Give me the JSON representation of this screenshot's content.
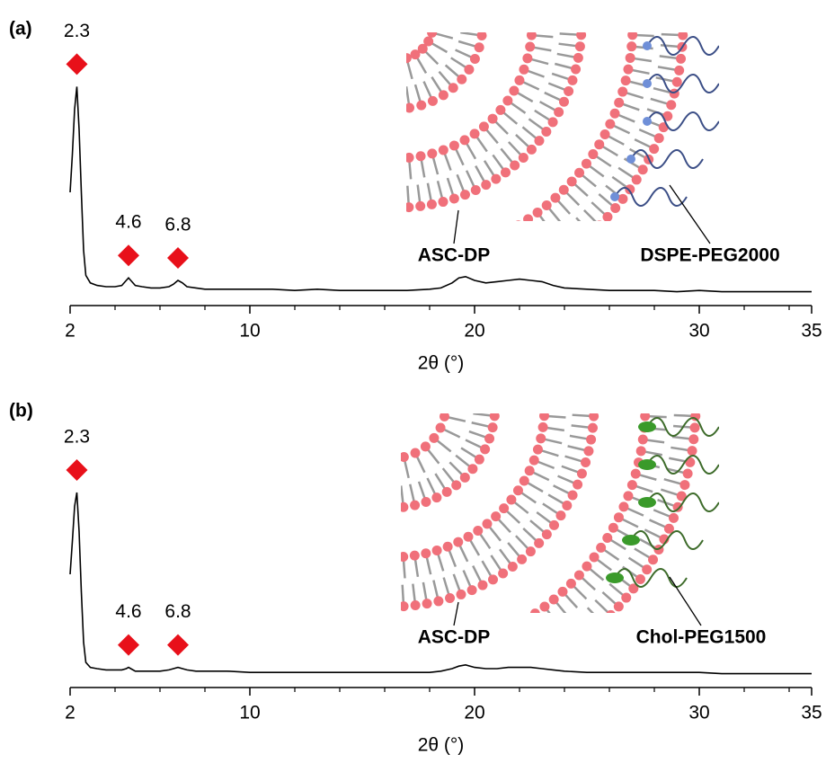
{
  "chart_data": [
    {
      "type": "line",
      "panel_label": "(a)",
      "x_label": "2θ (°)",
      "xlim": [
        2,
        35
      ],
      "xticks": [
        2,
        10,
        20,
        30,
        35
      ],
      "xminorticks": [
        4,
        6,
        8,
        12,
        14,
        16,
        18,
        22,
        24,
        26,
        28,
        32,
        34
      ],
      "ylim": [
        0,
        100
      ],
      "color": "#000000",
      "peak_labels": [
        2.3,
        4.6,
        6.8
      ],
      "peak_color": "#e8101a",
      "x": [
        2,
        2.1,
        2.2,
        2.3,
        2.4,
        2.5,
        2.6,
        2.7,
        2.9,
        3.2,
        3.6,
        4,
        4.3,
        4.5,
        4.6,
        4.7,
        4.9,
        5.2,
        5.6,
        6,
        6.4,
        6.6,
        6.8,
        7,
        7.2,
        7.6,
        8,
        9,
        10,
        11,
        12,
        13,
        14,
        15,
        16,
        17,
        18,
        18.5,
        19,
        19.3,
        19.6,
        20,
        20.5,
        21,
        21.5,
        22,
        22.5,
        23,
        23.5,
        24,
        25,
        26,
        27,
        28,
        29,
        30,
        31,
        32,
        33,
        34,
        35
      ],
      "values": [
        45,
        60,
        78,
        87,
        70,
        45,
        22,
        12,
        9,
        8,
        7.5,
        7.5,
        8,
        10,
        11,
        10,
        8,
        7.5,
        7,
        7,
        7.5,
        8.5,
        10,
        9,
        7.5,
        7,
        6.5,
        6.5,
        6.5,
        6.5,
        6,
        6.5,
        6,
        6,
        6,
        6,
        6.5,
        7,
        9,
        11,
        11.5,
        10,
        9,
        9.5,
        10,
        10.5,
        10,
        9.5,
        8,
        7,
        6.5,
        6,
        6,
        6,
        5.5,
        6,
        5.5,
        5.5,
        5.5,
        5.5,
        5.5
      ],
      "inset_labels": [
        {
          "text": "ASC-DP",
          "color": "#e8262e"
        },
        {
          "text": "DSPE-PEG2000",
          "color": "#1f1fd0"
        }
      ],
      "polymer_color": "#3b4e86",
      "anchor_color": "#6f8fd8"
    },
    {
      "type": "line",
      "panel_label": "(b)",
      "x_label": "2θ (°)",
      "xlim": [
        2,
        35
      ],
      "xticks": [
        2,
        10,
        20,
        30,
        35
      ],
      "xminorticks": [
        4,
        6,
        8,
        12,
        14,
        16,
        18,
        22,
        24,
        26,
        28,
        32,
        34
      ],
      "ylim": [
        0,
        100
      ],
      "color": "#000000",
      "peak_labels": [
        2.3,
        4.6,
        6.8
      ],
      "peak_color": "#e8101a",
      "x": [
        2,
        2.1,
        2.2,
        2.3,
        2.4,
        2.5,
        2.6,
        2.7,
        2.9,
        3.2,
        3.6,
        4,
        4.3,
        4.5,
        4.6,
        4.7,
        4.9,
        5.2,
        5.6,
        6,
        6.4,
        6.6,
        6.8,
        7,
        7.2,
        7.6,
        8,
        9,
        10,
        11,
        12,
        13,
        14,
        15,
        16,
        17,
        18,
        18.5,
        19,
        19.3,
        19.6,
        20,
        20.5,
        21,
        21.5,
        22,
        22.5,
        23,
        23.5,
        24,
        25,
        26,
        27,
        28,
        29,
        30,
        31,
        32,
        33,
        34,
        35
      ],
      "values": [
        45,
        58,
        72,
        77.5,
        62,
        38,
        18,
        10,
        8,
        7.5,
        7,
        7,
        7,
        7.5,
        8,
        7.5,
        6.5,
        6.5,
        6.5,
        6.5,
        7,
        7.5,
        8,
        7.5,
        7,
        6.5,
        6.5,
        6.5,
        6,
        6,
        6,
        6,
        6,
        6,
        6,
        6,
        6,
        6.5,
        7.5,
        8.5,
        9,
        8,
        7.5,
        7.5,
        8,
        8,
        8,
        7.5,
        7,
        6.5,
        6,
        6,
        6,
        6,
        6,
        6,
        5.5,
        5.5,
        5.5,
        5.5,
        5.5
      ],
      "inset_labels": [
        {
          "text": "ASC-DP",
          "color": "#e8262e"
        },
        {
          "text": "Chol-PEG1500",
          "color": "#2a7a1e"
        }
      ],
      "polymer_color": "#3d6b2a",
      "anchor_color": "#3a9a2a"
    }
  ]
}
